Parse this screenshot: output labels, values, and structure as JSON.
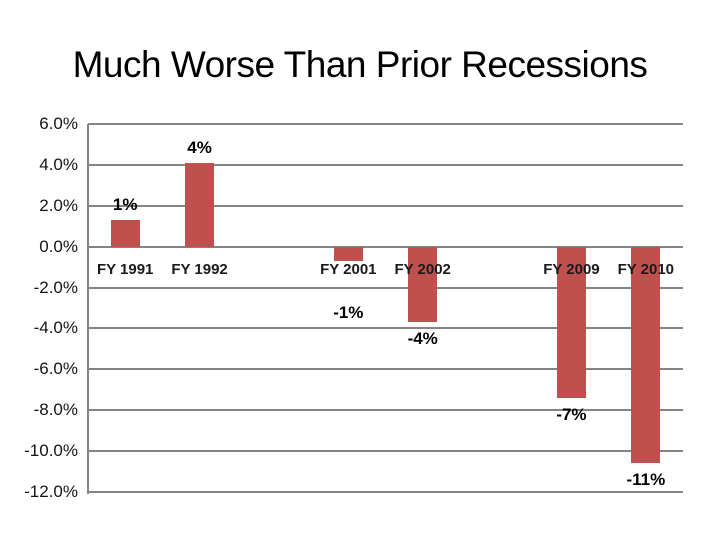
{
  "slide": {
    "title": "Much Worse Than Prior Recessions",
    "background_color": "#FFFFFF"
  },
  "chart_data": {
    "type": "bar",
    "title": "Much Worse Than Prior Recessions",
    "xlabel": "",
    "ylabel": "",
    "ylim": [
      -12,
      6
    ],
    "ytick_step": 2,
    "grid": true,
    "legend": "none",
    "yticks": [
      {
        "label": "6.0%",
        "value": 6
      },
      {
        "label": "4.0%",
        "value": 4
      },
      {
        "label": "2.0%",
        "value": 2
      },
      {
        "label": "0.0%",
        "value": 0
      },
      {
        "label": "-2.0%",
        "value": -2
      },
      {
        "label": "-4.0%",
        "value": -4
      },
      {
        "label": "-6.0%",
        "value": -6
      },
      {
        "label": "-8.0%",
        "value": -8
      },
      {
        "label": "-10.0%",
        "value": -10
      },
      {
        "label": "-12.0%",
        "value": -12
      }
    ],
    "categories": [
      "FY 1991",
      "FY 1992",
      "",
      "FY 2001",
      "FY 2002",
      "",
      "FY 2009",
      "FY 2010"
    ],
    "values": [
      1.3,
      4.1,
      null,
      -0.7,
      -3.7,
      null,
      -7.4,
      -10.6
    ],
    "data_labels": [
      "1%",
      "4%",
      "",
      "-1%",
      "-4%",
      "",
      "-7%",
      "-11%"
    ],
    "colors": {
      "bar": "#C0504D",
      "gridline": "#848484",
      "axis_line": "#848484",
      "tick_text": "#141414",
      "category_text": "#1A1A1A",
      "data_label_text": "#000000",
      "title_text": "#000000"
    }
  }
}
